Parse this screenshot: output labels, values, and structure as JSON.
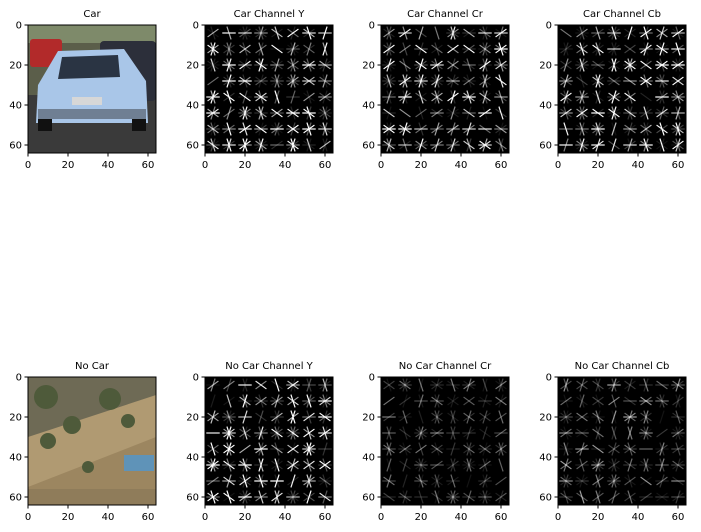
{
  "figure": {
    "rows": [
      {
        "panels": [
          {
            "title": "Car",
            "kind": "photo-car"
          },
          {
            "title": "Car Channel Y",
            "kind": "hog",
            "seed": 11,
            "intensity": 1.0
          },
          {
            "title": "Car Channel Cr",
            "kind": "hog",
            "seed": 23,
            "intensity": 0.85
          },
          {
            "title": "Car Channel Cb",
            "kind": "hog",
            "seed": 37,
            "intensity": 0.9
          }
        ]
      },
      {
        "panels": [
          {
            "title": "No Car",
            "kind": "photo-nocar"
          },
          {
            "title": "No Car Channel Y",
            "kind": "hog",
            "seed": 53,
            "intensity": 1.0
          },
          {
            "title": "No Car Channel Cr",
            "kind": "hog",
            "seed": 71,
            "intensity": 0.35
          },
          {
            "title": "No Car Channel Cb",
            "kind": "hog",
            "seed": 89,
            "intensity": 0.45
          }
        ]
      }
    ],
    "x_ticks": [
      "0",
      "20",
      "40",
      "60"
    ],
    "y_ticks": [
      "0",
      "20",
      "40",
      "60"
    ],
    "x_tick_values": [
      0,
      20,
      40,
      60
    ],
    "y_tick_values": [
      0,
      20,
      40,
      60
    ],
    "image_extent": [
      0,
      64
    ]
  },
  "colors": {
    "hog_background": "#000000",
    "hog_stroke": "#ffffff",
    "road": "#3a3a3a",
    "car_body": "#a9c6e8",
    "grass": "#9c8660"
  }
}
